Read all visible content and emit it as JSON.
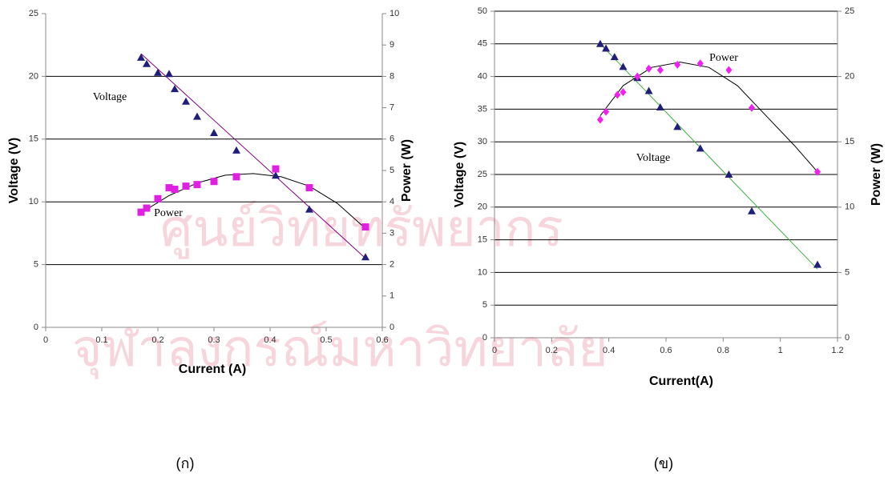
{
  "watermark": [
    "ศูนย์วิทยทรัพยากร",
    "จุฬาลงกรณ์มหาวิทยาลัย"
  ],
  "chart_data": [
    {
      "type": "scatter",
      "caption": "(ก)",
      "x_label": "Current (A)",
      "y_label": "Voltage (V)",
      "y2_label": "Power (W)",
      "xlim": [
        0,
        0.6
      ],
      "xticks": [
        0,
        0.1,
        0.2,
        0.3,
        0.4,
        0.5,
        0.6
      ],
      "ylim": [
        0,
        25
      ],
      "yticks": [
        0,
        5,
        10,
        15,
        20,
        25
      ],
      "y2lim": [
        0,
        10
      ],
      "y2ticks": [
        0,
        1,
        2,
        3,
        4,
        5,
        6,
        7,
        8,
        9,
        10
      ],
      "grid": true,
      "series": [
        {
          "name": "Voltage",
          "color": "#1f1f7a",
          "marker": "triangle",
          "x": [
            0.17,
            0.18,
            0.2,
            0.22,
            0.23,
            0.25,
            0.27,
            0.3,
            0.34,
            0.41,
            0.47,
            0.57
          ],
          "values": [
            21.5,
            21.0,
            20.3,
            20.2,
            19.0,
            18.0,
            16.8,
            15.5,
            14.1,
            12.1,
            9.4,
            5.6
          ]
        },
        {
          "name": "Power",
          "color": "#e020e0",
          "marker": "square",
          "axis": "y2",
          "x": [
            0.17,
            0.18,
            0.2,
            0.22,
            0.23,
            0.25,
            0.27,
            0.3,
            0.34,
            0.41,
            0.47,
            0.57
          ],
          "values": [
            3.67,
            3.8,
            4.1,
            4.45,
            4.4,
            4.5,
            4.55,
            4.65,
            4.8,
            5.05,
            4.45,
            3.2
          ]
        }
      ],
      "trendlines": [
        {
          "color": "#800080",
          "x": [
            0.17,
            0.57
          ],
          "values": [
            21.8,
            5.5
          ]
        },
        {
          "color": "#000000",
          "axis": "y2",
          "x": [
            0.17,
            0.22,
            0.27,
            0.32,
            0.37,
            0.42,
            0.47,
            0.52,
            0.57
          ],
          "values": [
            3.65,
            4.2,
            4.6,
            4.85,
            4.9,
            4.8,
            4.5,
            3.95,
            3.15
          ]
        }
      ]
    },
    {
      "type": "scatter",
      "caption": "(ข)",
      "x_label": "Current(A)",
      "y_label": "Voltage (V)",
      "y2_label": "Power (W)",
      "xlim": [
        0,
        1.2
      ],
      "xticks": [
        0,
        0.2,
        0.4,
        0.6,
        0.8,
        1,
        1.2
      ],
      "ylim": [
        0,
        50
      ],
      "yticks": [
        0,
        5,
        10,
        15,
        20,
        25,
        30,
        35,
        40,
        45,
        50
      ],
      "y2lim": [
        0,
        25
      ],
      "y2ticks": [
        0,
        5,
        10,
        15,
        20,
        25
      ],
      "grid": true,
      "series": [
        {
          "name": "Voltage",
          "color": "#1f1f7a",
          "marker": "triangle",
          "x": [
            0.37,
            0.39,
            0.42,
            0.45,
            0.5,
            0.54,
            0.58,
            0.64,
            0.72,
            0.82,
            0.9,
            1.13
          ],
          "values": [
            45.0,
            44.3,
            43.0,
            41.5,
            39.8,
            37.8,
            35.3,
            32.3,
            29.0,
            25.0,
            19.4,
            11.2
          ]
        },
        {
          "name": "Power",
          "color": "#f020f0",
          "marker": "diamond",
          "axis": "y2",
          "x": [
            0.37,
            0.39,
            0.43,
            0.45,
            0.5,
            0.54,
            0.58,
            0.64,
            0.72,
            0.82,
            0.9,
            1.13
          ],
          "values": [
            16.7,
            17.3,
            18.6,
            18.8,
            20.0,
            20.6,
            20.5,
            20.9,
            21.0,
            20.5,
            17.6,
            12.7
          ]
        }
      ],
      "trendlines": [
        {
          "color": "#40b040",
          "x": [
            0.37,
            1.13
          ],
          "values": [
            45.0,
            10.5
          ]
        },
        {
          "color": "#000000",
          "axis": "y2",
          "x": [
            0.37,
            0.45,
            0.55,
            0.65,
            0.75,
            0.85,
            0.95,
            1.05,
            1.13
          ],
          "values": [
            17.0,
            19.3,
            20.7,
            21.1,
            20.7,
            19.3,
            17.0,
            14.7,
            12.7
          ]
        }
      ]
    }
  ]
}
